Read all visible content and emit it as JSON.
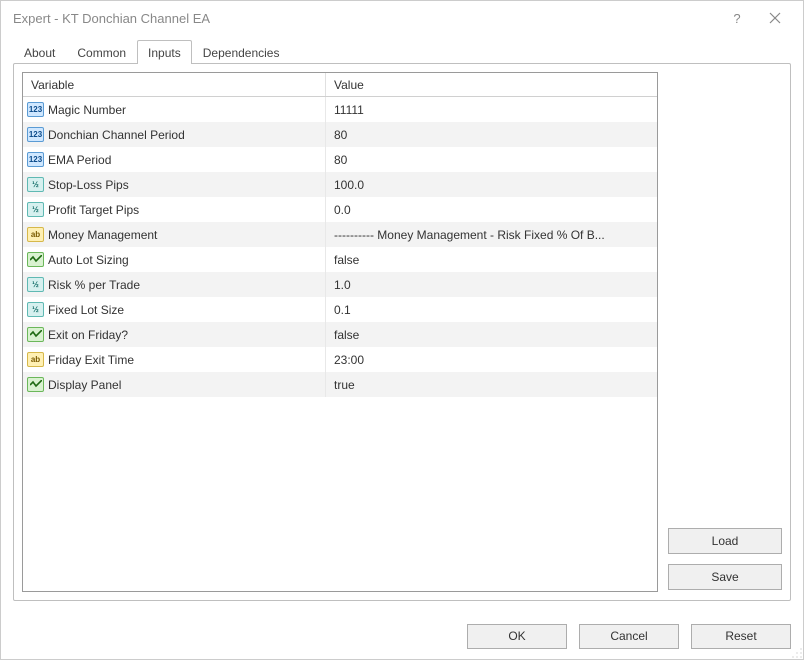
{
  "window": {
    "title": "Expert - KT Donchian Channel EA"
  },
  "tabs": {
    "about": "About",
    "common": "Common",
    "inputs": "Inputs",
    "dependencies": "Dependencies",
    "active": "inputs"
  },
  "table": {
    "header_variable": "Variable",
    "header_value": "Value",
    "rows": [
      {
        "type": "int",
        "name": "Magic Number",
        "value": "11111"
      },
      {
        "type": "int",
        "name": "Donchian Channel Period",
        "value": "80"
      },
      {
        "type": "int",
        "name": "EMA Period",
        "value": "80"
      },
      {
        "type": "dbl",
        "name": "Stop-Loss Pips",
        "value": "100.0"
      },
      {
        "type": "dbl",
        "name": "Profit Target Pips",
        "value": "0.0"
      },
      {
        "type": "str",
        "name": "Money Management",
        "value": "---------- Money Management - Risk Fixed % Of B..."
      },
      {
        "type": "bool",
        "name": "Auto Lot Sizing",
        "value": "false"
      },
      {
        "type": "dbl",
        "name": "Risk % per Trade",
        "value": "1.0"
      },
      {
        "type": "dbl",
        "name": "Fixed Lot Size",
        "value": "0.1"
      },
      {
        "type": "bool",
        "name": "Exit on Friday?",
        "value": "false"
      },
      {
        "type": "str",
        "name": "Friday Exit Time",
        "value": "23:00"
      },
      {
        "type": "bool",
        "name": "Display Panel",
        "value": "true"
      }
    ]
  },
  "buttons": {
    "load": "Load",
    "save": "Save",
    "ok": "OK",
    "cancel": "Cancel",
    "reset": "Reset"
  },
  "icons": {
    "int_label": "123",
    "dbl_label": "½",
    "str_label": "ab"
  },
  "colors": {
    "border": "#bfbfbf",
    "row_alt": "#f3f3f3",
    "button_bg": "#f0f0f0",
    "button_border": "#adadad"
  }
}
